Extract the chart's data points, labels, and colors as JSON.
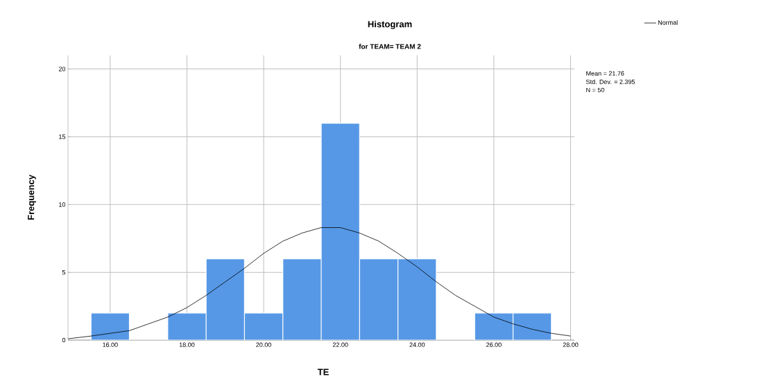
{
  "chart_data": {
    "type": "histogram",
    "title": "Histogram",
    "subtitle": "for TEAM= TEAM 2",
    "xlabel": "TE",
    "ylabel": "Frequency",
    "bins": [
      15.5,
      16.5,
      17.5,
      18.5,
      19.5,
      20.5,
      21.5,
      22.5,
      23.5,
      24.5,
      25.5,
      26.5,
      27.5
    ],
    "values": [
      2,
      0,
      2,
      6,
      2,
      6,
      16,
      6,
      6,
      0,
      2,
      2
    ],
    "color": "#5698e6",
    "series": [
      {
        "type": "line",
        "name": "Normal",
        "color": "#000000",
        "x": [
          14.9,
          15.5,
          16,
          16.5,
          17,
          17.5,
          18,
          18.5,
          19,
          19.5,
          20,
          20.5,
          21,
          21.5,
          21.76,
          22,
          22.5,
          23,
          23.5,
          24,
          24.5,
          25,
          25.5,
          26,
          26.5,
          27,
          27.5,
          28
        ],
        "values": [
          0.1,
          0.3,
          0.5,
          0.7,
          1.2,
          1.7,
          2.4,
          3.3,
          4.3,
          5.3,
          6.4,
          7.3,
          7.9,
          8.3,
          8.3,
          8.3,
          7.9,
          7.3,
          6.4,
          5.4,
          4.3,
          3.3,
          2.5,
          1.7,
          1.2,
          0.8,
          0.5,
          0.3
        ]
      }
    ],
    "xlim": [
      14.9,
      28.1
    ],
    "ylim": [
      0,
      21
    ],
    "xticks": [
      {
        "value": 16,
        "label": "16.00"
      },
      {
        "value": 18,
        "label": "18.00"
      },
      {
        "value": 20,
        "label": "20.00"
      },
      {
        "value": 22,
        "label": "22.00"
      },
      {
        "value": 24,
        "label": "24.00"
      },
      {
        "value": 26,
        "label": "26.00"
      },
      {
        "value": 28,
        "label": "28.00"
      }
    ],
    "yticks": [
      0,
      5,
      10,
      15,
      20
    ],
    "grid": true,
    "legend": "top right",
    "annotations": [
      "Mean = 21.76",
      "Std. Dev. = 2.395",
      "N = 50"
    ]
  }
}
